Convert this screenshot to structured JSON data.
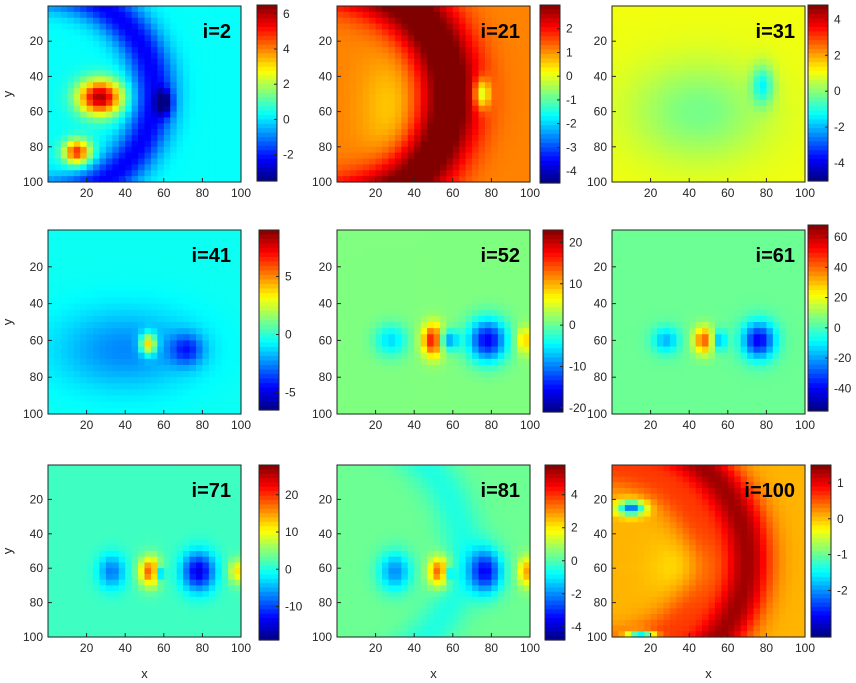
{
  "chart_data": {
    "type": "heatmap",
    "colormap": "jet",
    "x_axis": {
      "label": "x",
      "range": [
        0,
        100
      ],
      "ticks": [
        20,
        40,
        60,
        80,
        100
      ]
    },
    "y_axis": {
      "label": "y",
      "range": [
        0,
        100
      ],
      "reversed": true,
      "ticks": [
        20,
        40,
        60,
        80,
        100
      ]
    },
    "axis_label_rule": "y label on left column only, x label on bottom row only",
    "panels": [
      {
        "title": "i=2",
        "clim": [
          -3.5,
          6.5
        ],
        "colorbar_ticks": [
          -2,
          0,
          2,
          4,
          6
        ],
        "bg": 0.3,
        "features": [
          {
            "kind": "ring",
            "cx": -5,
            "cy": 50,
            "r": 60,
            "w": 8,
            "v": -2.6
          },
          {
            "kind": "blob",
            "cx": 27,
            "cy": 52,
            "sx": 8,
            "sy": 7,
            "v": 5.8
          },
          {
            "kind": "blob",
            "cx": 15,
            "cy": 83,
            "sx": 5,
            "sy": 5,
            "v": 4.6
          },
          {
            "kind": "blob",
            "cx": 60,
            "cy": 55,
            "sx": 3,
            "sy": 5,
            "v": -2.5
          }
        ]
      },
      {
        "title": "i=21",
        "clim": [
          -4.5,
          3
        ],
        "colorbar_ticks": [
          -4,
          -3,
          -2,
          -1,
          0,
          1,
          2
        ],
        "bg": 1.1,
        "features": [
          {
            "kind": "ring",
            "cx": -10,
            "cy": 50,
            "r": 68,
            "w": 12,
            "v": 2.4
          },
          {
            "kind": "blob",
            "cx": 30,
            "cy": 60,
            "sx": 12,
            "sy": 25,
            "v": -0.6
          },
          {
            "kind": "blob",
            "cx": 75,
            "cy": 50,
            "sx": 3,
            "sy": 6,
            "v": -2.0
          }
        ]
      },
      {
        "title": "i=31",
        "clim": [
          -5,
          4.8
        ],
        "colorbar_ticks": [
          -4,
          -2,
          0,
          2,
          4
        ],
        "bg": 1.0,
        "features": [
          {
            "kind": "blob",
            "cx": 45,
            "cy": 60,
            "sx": 25,
            "sy": 20,
            "v": -1.2
          },
          {
            "kind": "blob",
            "cx": 78,
            "cy": 45,
            "sx": 4,
            "sy": 8,
            "v": -2.0
          }
        ]
      },
      {
        "title": "i=41",
        "clim": [
          -6.5,
          9
        ],
        "colorbar_ticks": [
          -5,
          0,
          5
        ],
        "bg": -0.5,
        "features": [
          {
            "kind": "blob",
            "cx": 40,
            "cy": 65,
            "sx": 25,
            "sy": 15,
            "v": -2.0
          },
          {
            "kind": "blob",
            "cx": 52,
            "cy": 62,
            "sx": 3,
            "sy": 4,
            "v": 6.0
          },
          {
            "kind": "blob",
            "cx": 72,
            "cy": 65,
            "sx": 6,
            "sy": 6,
            "v": -3.0
          }
        ]
      },
      {
        "title": "i=52",
        "clim": [
          -21,
          23
        ],
        "colorbar_ticks": [
          -20,
          -10,
          0,
          10,
          20
        ],
        "bg": 1.0,
        "features": [
          {
            "kind": "blob",
            "cx": 28,
            "cy": 60,
            "sx": 6,
            "sy": 6,
            "v": -7
          },
          {
            "kind": "blob",
            "cx": 50,
            "cy": 60,
            "sx": 4,
            "sy": 6,
            "v": 18
          },
          {
            "kind": "blob",
            "cx": 57,
            "cy": 60,
            "sx": 4,
            "sy": 4,
            "v": -12
          },
          {
            "kind": "blob",
            "cx": 78,
            "cy": 60,
            "sx": 7,
            "sy": 8,
            "v": -17
          },
          {
            "kind": "blob",
            "cx": 97,
            "cy": 60,
            "sx": 3,
            "sy": 5,
            "v": 8
          }
        ]
      },
      {
        "title": "i=61",
        "clim": [
          -55,
          68
        ],
        "colorbar_ticks": [
          -40,
          -20,
          0,
          20,
          40,
          60
        ],
        "bg": 4.0,
        "features": [
          {
            "kind": "blob",
            "cx": 28,
            "cy": 60,
            "sx": 5,
            "sy": 5,
            "v": -22
          },
          {
            "kind": "blob",
            "cx": 48,
            "cy": 60,
            "sx": 4,
            "sy": 5,
            "v": 40
          },
          {
            "kind": "blob",
            "cx": 55,
            "cy": 60,
            "sx": 3,
            "sy": 4,
            "v": -28
          },
          {
            "kind": "blob",
            "cx": 76,
            "cy": 60,
            "sx": 6,
            "sy": 7,
            "v": -45
          }
        ]
      },
      {
        "title": "i=71",
        "clim": [
          -19,
          28
        ],
        "colorbar_ticks": [
          -10,
          0,
          10,
          20
        ],
        "bg": 1.5,
        "features": [
          {
            "kind": "blob",
            "cx": 33,
            "cy": 62,
            "sx": 5,
            "sy": 7,
            "v": -9
          },
          {
            "kind": "blob",
            "cx": 53,
            "cy": 62,
            "sx": 4,
            "sy": 6,
            "v": 17
          },
          {
            "kind": "blob",
            "cx": 58,
            "cy": 63,
            "sx": 2,
            "sy": 3,
            "v": -12
          },
          {
            "kind": "blob",
            "cx": 78,
            "cy": 62,
            "sx": 6,
            "sy": 8,
            "v": -16
          },
          {
            "kind": "blob",
            "cx": 98,
            "cy": 62,
            "sx": 3,
            "sy": 5,
            "v": 10
          }
        ]
      },
      {
        "title": "i=81",
        "clim": [
          -4.8,
          5.8
        ],
        "colorbar_ticks": [
          -4,
          -2,
          0,
          2,
          4
        ],
        "bg": 0.3,
        "features": [
          {
            "kind": "blob",
            "cx": 30,
            "cy": 62,
            "sx": 6,
            "sy": 8,
            "v": -2.3
          },
          {
            "kind": "blob",
            "cx": 53,
            "cy": 62,
            "sx": 4,
            "sy": 6,
            "v": 3.5
          },
          {
            "kind": "blob",
            "cx": 58,
            "cy": 63,
            "sx": 2,
            "sy": 3,
            "v": -2.0
          },
          {
            "kind": "blob",
            "cx": 77,
            "cy": 62,
            "sx": 6,
            "sy": 9,
            "v": -3.6
          },
          {
            "kind": "blob",
            "cx": 98,
            "cy": 62,
            "sx": 3,
            "sy": 6,
            "v": 2.5
          },
          {
            "kind": "ring",
            "cx": -10,
            "cy": 50,
            "r": 75,
            "w": 8,
            "v": -0.8
          }
        ]
      },
      {
        "title": "i=100",
        "clim": [
          -3.3,
          1.5
        ],
        "colorbar_ticks": [
          -2,
          -1,
          0,
          1
        ],
        "bg": 0.05,
        "features": [
          {
            "kind": "ring",
            "cx": -5,
            "cy": 55,
            "r": 75,
            "w": 9,
            "v": 1.3
          },
          {
            "kind": "ring",
            "cx": -5,
            "cy": 55,
            "r": 52,
            "w": 8,
            "v": 0.5
          },
          {
            "kind": "blob",
            "cx": 10,
            "cy": 25,
            "sx": 5,
            "sy": 3,
            "v": -2.3
          },
          {
            "kind": "blob",
            "cx": 15,
            "cy": 100,
            "sx": 5,
            "sy": 2,
            "v": -2.8
          },
          {
            "kind": "blob",
            "cx": 40,
            "cy": 60,
            "sx": 12,
            "sy": 12,
            "v": -0.3
          }
        ]
      }
    ]
  }
}
